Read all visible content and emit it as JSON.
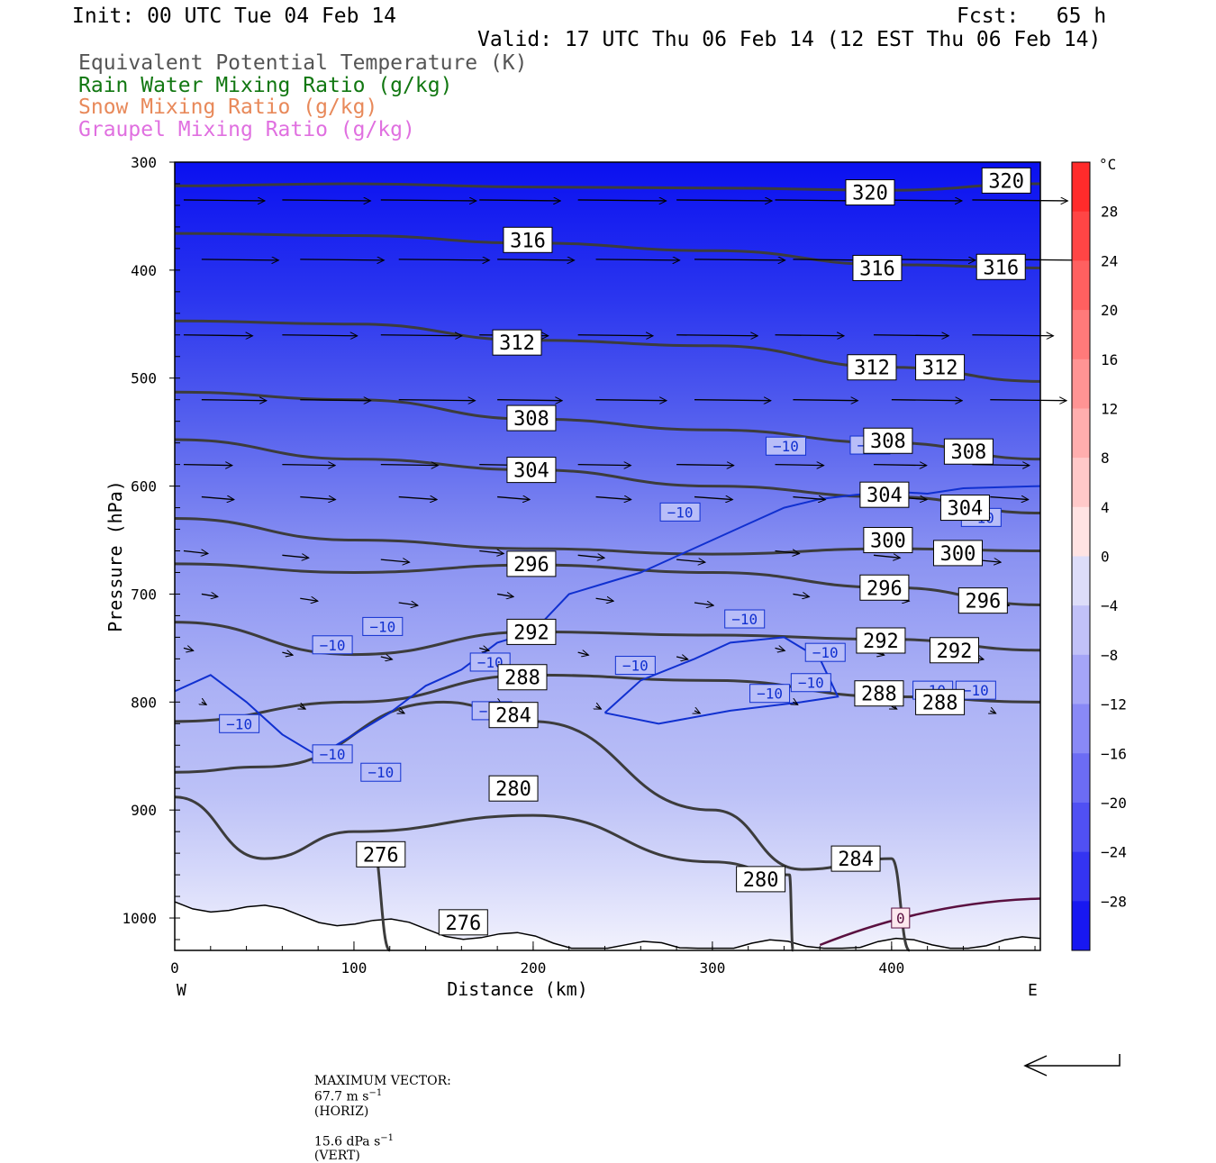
{
  "header": {
    "init": "Init: 00 UTC Tue 04 Feb 14",
    "fcst": "Fcst:   65 h",
    "valid": "Valid: 17 UTC Thu 06 Feb 14 (12 EST Thu 06 Feb 14)",
    "fields": [
      {
        "label": "Equivalent Potential Temperature (K)",
        "color": "#555555"
      },
      {
        "label": "Rain Water Mixing Ratio (g/kg)",
        "color": "#117711"
      },
      {
        "label": "Snow Mixing Ratio (g/kg)",
        "color": "#e8895a"
      },
      {
        "label": "Graupel Mixing Ratio (g/kg)",
        "color": "#e070e0"
      }
    ]
  },
  "chart_data": {
    "type": "cross-section",
    "xlabel": "Distance (km)",
    "ylabel": "Pressure (hPa)",
    "xlim": [
      0,
      483
    ],
    "ylim": [
      300,
      1030
    ],
    "x_ticks": [
      0,
      100,
      200,
      300,
      400
    ],
    "y_ticks": [
      300,
      400,
      500,
      600,
      700,
      800,
      900,
      1000
    ],
    "x_end_labels": {
      "left": "W",
      "right": "E"
    },
    "colorbar": {
      "unit": "°C",
      "tick_labels": [
        "28",
        "24",
        "20",
        "16",
        "12",
        "8",
        "4",
        "0",
        "−4",
        "−8",
        "−12",
        "−16",
        "−20",
        "−24",
        "−28"
      ],
      "tick_values": [
        28,
        24,
        20,
        16,
        12,
        8,
        4,
        0,
        -4,
        -8,
        -12,
        -16,
        -20,
        -24,
        -28
      ],
      "range": [
        -32,
        32
      ],
      "colors_negative": "#1010ee",
      "colors_positive": "#ee2020"
    },
    "theta_e_contours": [
      {
        "label": "320",
        "pts": [
          [
            0,
            322
          ],
          [
            100,
            320
          ],
          [
            200,
            323
          ],
          [
            300,
            324
          ],
          [
            400,
            326
          ],
          [
            483,
            320
          ]
        ],
        "label_pos": [
          [
            388,
            328
          ],
          [
            464,
            317
          ]
        ]
      },
      {
        "label": "316",
        "pts": [
          [
            0,
            366
          ],
          [
            100,
            368
          ],
          [
            200,
            375
          ],
          [
            300,
            382
          ],
          [
            400,
            395
          ],
          [
            483,
            398
          ]
        ],
        "label_pos": [
          [
            197,
            372
          ],
          [
            392,
            398
          ],
          [
            461,
            397
          ]
        ]
      },
      {
        "label": "312",
        "pts": [
          [
            0,
            447
          ],
          [
            100,
            450
          ],
          [
            200,
            465
          ],
          [
            300,
            470
          ],
          [
            400,
            490
          ],
          [
            483,
            503
          ]
        ],
        "label_pos": [
          [
            191,
            467
          ],
          [
            389,
            490
          ],
          [
            427,
            490
          ]
        ]
      },
      {
        "label": "308",
        "pts": [
          [
            0,
            513
          ],
          [
            100,
            520
          ],
          [
            200,
            538
          ],
          [
            300,
            548
          ],
          [
            400,
            560
          ],
          [
            483,
            575
          ]
        ],
        "label_pos": [
          [
            199,
            537
          ],
          [
            398,
            558
          ],
          [
            443,
            568
          ]
        ]
      },
      {
        "label": "304",
        "pts": [
          [
            0,
            557
          ],
          [
            100,
            575
          ],
          [
            200,
            585
          ],
          [
            300,
            600
          ],
          [
            400,
            610
          ],
          [
            483,
            625
          ]
        ],
        "label_pos": [
          [
            199,
            585
          ],
          [
            396,
            608
          ],
          [
            441,
            620
          ]
        ]
      },
      {
        "label": "300",
        "pts": [
          [
            0,
            630
          ],
          [
            100,
            650
          ],
          [
            200,
            658
          ],
          [
            300,
            663
          ],
          [
            400,
            658
          ],
          [
            483,
            660
          ]
        ],
        "label_pos": [
          [
            398,
            650
          ],
          [
            437,
            662
          ]
        ]
      },
      {
        "label": "296",
        "pts": [
          [
            0,
            672
          ],
          [
            100,
            680
          ],
          [
            200,
            673
          ],
          [
            300,
            680
          ],
          [
            400,
            694
          ],
          [
            483,
            710
          ]
        ],
        "label_pos": [
          [
            199,
            672
          ],
          [
            396,
            694
          ],
          [
            451,
            706
          ]
        ]
      },
      {
        "label": "292",
        "pts": [
          [
            0,
            726
          ],
          [
            100,
            756
          ],
          [
            200,
            735
          ],
          [
            300,
            738
          ],
          [
            400,
            742
          ],
          [
            483,
            752
          ]
        ],
        "label_pos": [
          [
            199,
            735
          ],
          [
            394,
            743
          ],
          [
            435,
            752
          ]
        ]
      },
      {
        "label": "288",
        "pts": [
          [
            0,
            818
          ],
          [
            100,
            800
          ],
          [
            200,
            775
          ],
          [
            300,
            780
          ],
          [
            400,
            795
          ],
          [
            483,
            800
          ]
        ],
        "label_pos": [
          [
            194,
            777
          ],
          [
            393,
            792
          ],
          [
            427,
            800
          ]
        ]
      },
      {
        "label": "284",
        "pts": [
          [
            0,
            865
          ],
          [
            50,
            860
          ],
          [
            150,
            800
          ],
          [
            200,
            818
          ],
          [
            300,
            900
          ],
          [
            350,
            955
          ],
          [
            400,
            945
          ],
          [
            410,
            1030
          ]
        ],
        "label_pos": [
          [
            189,
            812
          ],
          [
            380,
            945
          ]
        ]
      },
      {
        "label": "280",
        "pts": [
          [
            0,
            888
          ],
          [
            50,
            945
          ],
          [
            100,
            920
          ],
          [
            200,
            905
          ],
          [
            300,
            948
          ],
          [
            343,
            960
          ],
          [
            345,
            1030
          ]
        ],
        "label_pos": [
          [
            189,
            880
          ],
          [
            327,
            964
          ]
        ]
      },
      {
        "label": "276",
        "pts": [
          [
            110,
            930
          ],
          [
            120,
            1030
          ]
        ],
        "label_pos": [
          [
            115,
            941
          ],
          [
            161,
            1004
          ]
        ]
      }
    ],
    "temperature_minus10_labels": [
      {
        "text": "−10",
        "pos": [
          36,
          820
        ]
      },
      {
        "text": "−10",
        "pos": [
          88,
          848
        ]
      },
      {
        "text": "−10",
        "pos": [
          115,
          865
        ]
      },
      {
        "text": "−10",
        "pos": [
          177,
          808
        ]
      },
      {
        "text": "−10",
        "pos": [
          176,
          763
        ]
      },
      {
        "text": "−10",
        "pos": [
          88,
          747
        ]
      },
      {
        "text": "−10",
        "pos": [
          116,
          730
        ]
      },
      {
        "text": "−10",
        "pos": [
          257,
          766
        ]
      },
      {
        "text": "−10",
        "pos": [
          282,
          624
        ]
      },
      {
        "text": "−10",
        "pos": [
          332,
          792
        ]
      },
      {
        "text": "−10",
        "pos": [
          318,
          723
        ]
      },
      {
        "text": "−10",
        "pos": [
          363,
          754
        ]
      },
      {
        "text": "−10",
        "pos": [
          355,
          782
        ]
      },
      {
        "text": "−10",
        "pos": [
          423,
          789
        ]
      },
      {
        "text": "−10",
        "pos": [
          447,
          789
        ]
      },
      {
        "text": "−10",
        "pos": [
          341,
          563
        ]
      },
      {
        "text": "−10",
        "pos": [
          388,
          562
        ]
      },
      {
        "text": "−10",
        "pos": [
          450,
          629
        ]
      }
    ],
    "zero_label": {
      "text": "0",
      "pos": [
        405,
        1000
      ]
    },
    "max_vector": {
      "text_prefix": "MAXIMUM VECTOR:",
      "horiz": "67.7 m s",
      "horiz_unit_exp": "−1",
      "horiz_tag": "(HORIZ)",
      "vert": "15.6 dPa s",
      "vert_unit_exp": "−1",
      "vert_tag": "(VERT)"
    }
  }
}
